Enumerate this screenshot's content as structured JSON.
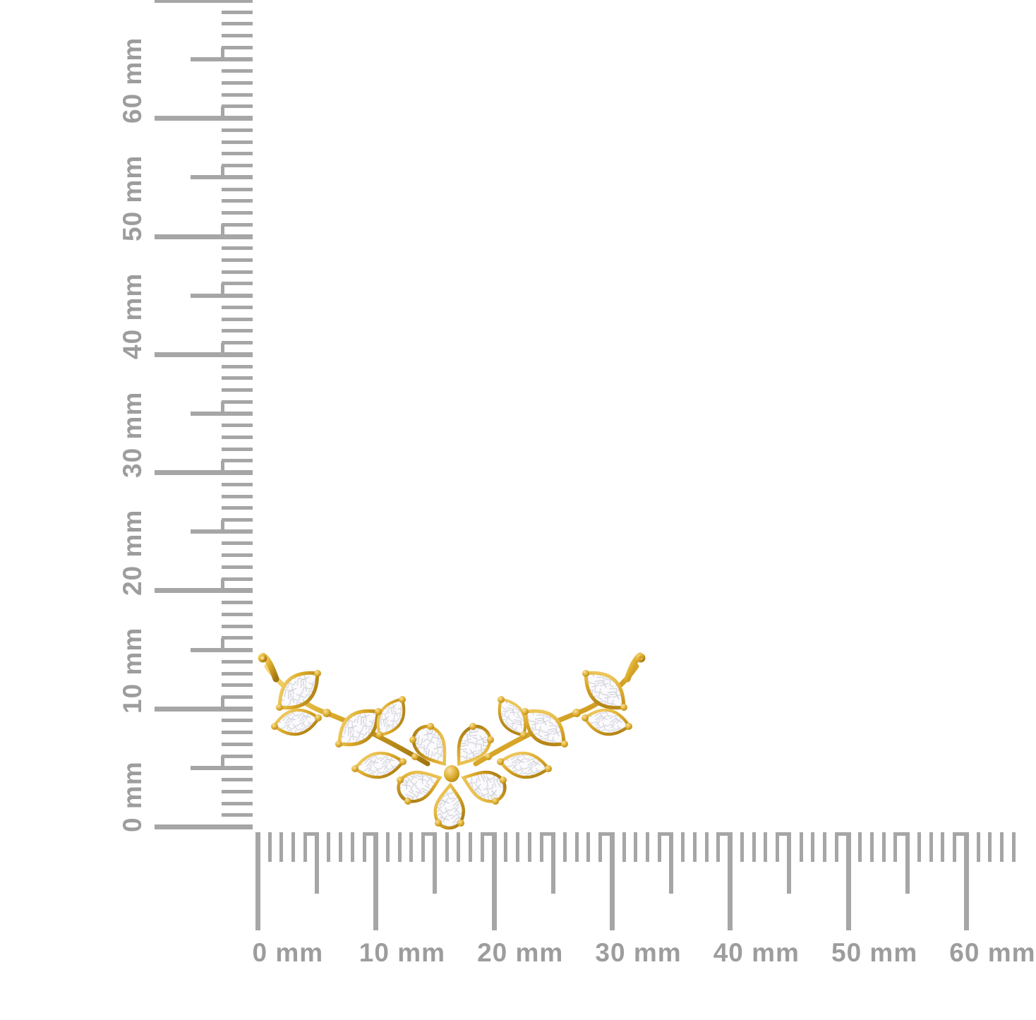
{
  "page": {
    "background_color": "#ffffff",
    "subject": "Gold and diamond floral pendant photographed against millimeter measurement rulers"
  },
  "rulers": {
    "unit": "mm",
    "tick_color": "#a6a6a6",
    "label_color": "#9d9d9d",
    "vertical": {
      "orientation": "vertical",
      "labels": [
        {
          "value": 0,
          "text": "0 mm"
        },
        {
          "value": 10,
          "text": "10 mm"
        },
        {
          "value": 20,
          "text": "20 mm"
        },
        {
          "value": 30,
          "text": "30 mm"
        },
        {
          "value": 40,
          "text": "40 mm"
        },
        {
          "value": 50,
          "text": "50 mm"
        },
        {
          "value": 60,
          "text": "60 mm"
        }
      ]
    },
    "horizontal": {
      "orientation": "horizontal",
      "labels": [
        {
          "value": 0,
          "text": "0 mm"
        },
        {
          "value": 10,
          "text": "10 mm"
        },
        {
          "value": 20,
          "text": "20 mm"
        },
        {
          "value": 30,
          "text": "30 mm"
        },
        {
          "value": 40,
          "text": "40 mm"
        },
        {
          "value": 50,
          "text": "50 mm"
        },
        {
          "value": 60,
          "text": "60 mm"
        }
      ]
    }
  },
  "pendant": {
    "type": "floral diamond pendant with two hanging hooks",
    "metal_color": "#d9a827",
    "metal_highlight_color": "#f6d97c",
    "metal_shadow_color": "#a1740f",
    "diamond_color": "#f8f8fb",
    "diamond_facet_color": "#d8d8e2",
    "marquise_stones": 10,
    "pear_petal_stones": 5,
    "center_beads": 1,
    "hooks": 2
  }
}
